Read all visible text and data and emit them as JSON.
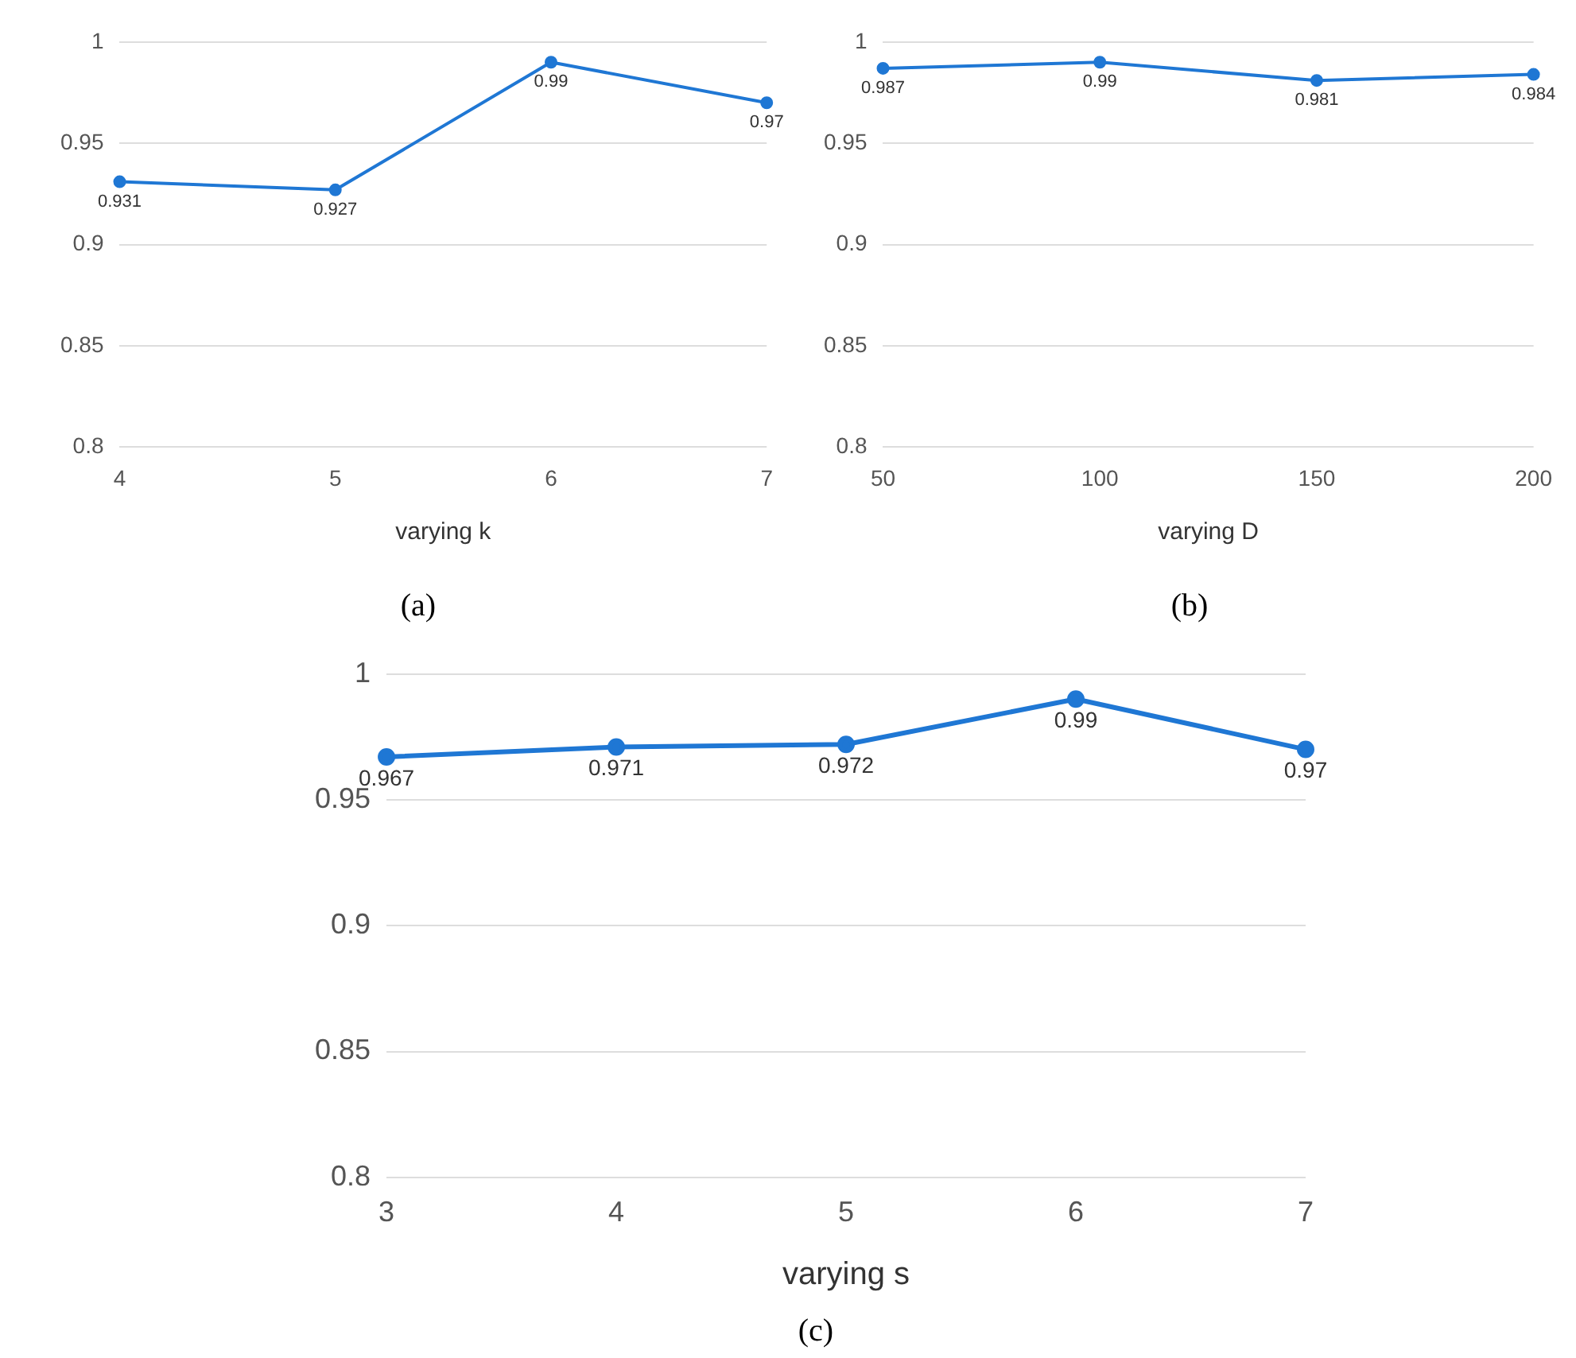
{
  "chart_data": [
    {
      "type": "line",
      "categories": [
        "4",
        "5",
        "6",
        "7"
      ],
      "xlabel": "varying k",
      "series": [
        {
          "color": "#1f77d4",
          "values": [
            0.931,
            0.927,
            0.99,
            0.97
          ]
        }
      ],
      "ylim": [
        0.8,
        1
      ],
      "yticks": [
        0.8,
        0.85,
        0.9,
        0.95,
        1
      ],
      "grid": "y",
      "marker": "circle",
      "line_style": "solid",
      "data_labels": true,
      "legend": false,
      "annotations": [
        "(a)"
      ]
    },
    {
      "type": "line",
      "categories": [
        "50",
        "100",
        "150",
        "200"
      ],
      "xlabel": "varying D",
      "series": [
        {
          "color": "#1f77d4",
          "values": [
            0.987,
            0.99,
            0.981,
            0.984
          ]
        }
      ],
      "ylim": [
        0.8,
        1
      ],
      "yticks": [
        0.8,
        0.85,
        0.9,
        0.95,
        1
      ],
      "grid": "y",
      "marker": "circle",
      "line_style": "solid",
      "data_labels": true,
      "legend": false,
      "annotations": [
        "(b)"
      ]
    },
    {
      "type": "line",
      "categories": [
        "3",
        "4",
        "5",
        "6",
        "7"
      ],
      "xlabel": "varying s",
      "series": [
        {
          "color": "#1f77d4",
          "values": [
            0.967,
            0.971,
            0.972,
            0.99,
            0.97
          ]
        }
      ],
      "ylim": [
        0.8,
        1
      ],
      "yticks": [
        0.8,
        0.85,
        0.9,
        0.95,
        1
      ],
      "grid": "y",
      "marker": "circle",
      "line_style": "solid",
      "data_labels": true,
      "legend": false,
      "annotations": [
        "(c)"
      ]
    }
  ]
}
